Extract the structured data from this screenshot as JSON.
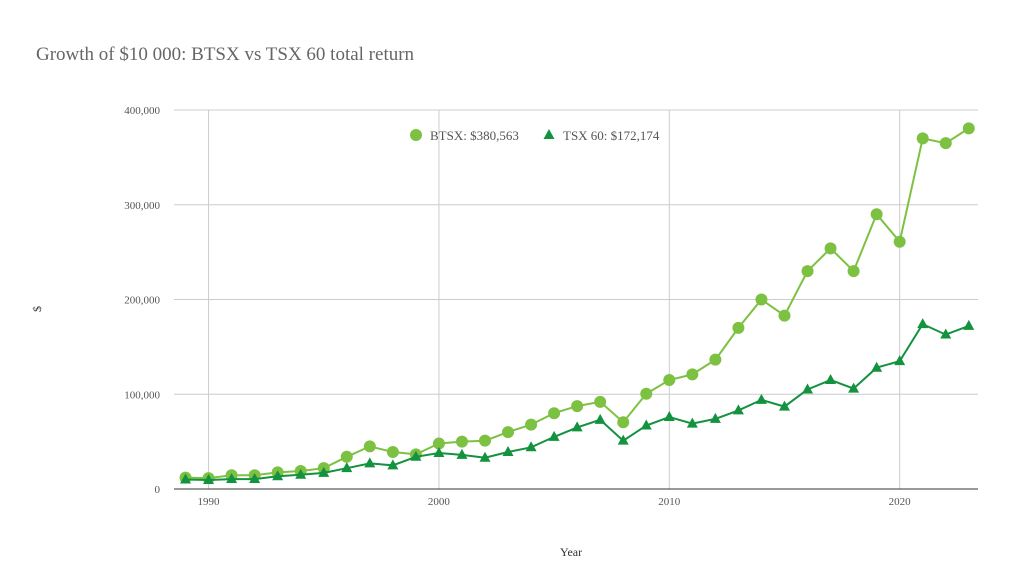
{
  "chart_data": {
    "type": "line",
    "title": "Growth of $10 000: BTSX vs TSX 60 total return",
    "xlabel": "Year",
    "ylabel": "$",
    "xlim": [
      1988.5,
      2023.4
    ],
    "ylim": [
      0,
      400000
    ],
    "x_ticks": [
      1990,
      2000,
      2010,
      2020
    ],
    "y_ticks": [
      0,
      100000,
      200000,
      300000,
      400000
    ],
    "y_tick_labels": [
      "0",
      "100,000",
      "200,000",
      "300,000",
      "400,000"
    ],
    "grid": true,
    "legend_position": "top",
    "x": [
      1989,
      1990,
      1991,
      1992,
      1993,
      1994,
      1995,
      1996,
      1997,
      1998,
      1999,
      2000,
      2001,
      2002,
      2003,
      2004,
      2005,
      2006,
      2007,
      2008,
      2009,
      2010,
      2011,
      2012,
      2013,
      2014,
      2015,
      2016,
      2017,
      2018,
      2019,
      2020,
      2021,
      2022,
      2023
    ],
    "series": [
      {
        "name": "BTSX: $380,563",
        "color": "#7dc142",
        "marker": "circle",
        "values": [
          12000,
          11500,
          14500,
          14500,
          17500,
          19000,
          22000,
          34000,
          45000,
          39000,
          36500,
          48000,
          50000,
          51000,
          60000,
          68000,
          80000,
          87500,
          92000,
          70500,
          100500,
          115000,
          121000,
          136500,
          170000,
          200000,
          183000,
          230000,
          254000,
          230000,
          290000,
          261000,
          370000,
          365000,
          380563
        ]
      },
      {
        "name": "TSX 60: $172,174",
        "color": "#13923f",
        "marker": "triangle",
        "values": [
          10000,
          9500,
          10500,
          10500,
          13500,
          15000,
          17000,
          22000,
          27000,
          25000,
          34000,
          38000,
          36000,
          33000,
          39000,
          44000,
          55000,
          65000,
          73000,
          51000,
          67000,
          76000,
          69000,
          74000,
          83000,
          94000,
          87000,
          105000,
          115000,
          106000,
          128000,
          135000,
          174000,
          163000,
          172174
        ]
      }
    ]
  }
}
